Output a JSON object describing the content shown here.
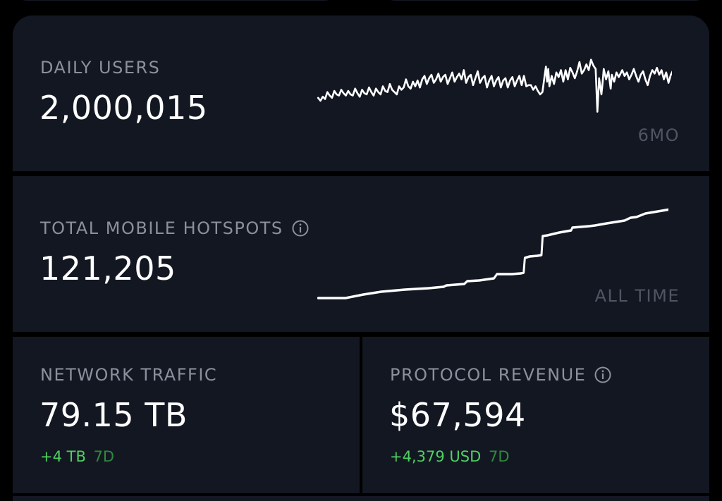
{
  "cards": {
    "daily_users": {
      "label": "DAILY USERS",
      "value": "2,000,015",
      "period": "6MO"
    },
    "mobile_hotspots": {
      "label": "TOTAL MOBILE HOTSPOTS",
      "value": "121,205",
      "period": "ALL TIME",
      "icon": "info-icon"
    },
    "network_traffic": {
      "label": "NETWORK TRAFFIC",
      "value": "79.15 TB",
      "delta": "+4 TB",
      "delta_period": "7D"
    },
    "protocol_revenue": {
      "label": "PROTOCOL REVENUE",
      "value": "$67,594",
      "delta": "+4,379 USD",
      "delta_period": "7D",
      "icon": "info-icon"
    }
  },
  "colors": {
    "card_bg": "#131722",
    "label": "#8b909c",
    "period": "#4f5562",
    "delta_positive": "#4fd161",
    "delta_period": "#2f8a3c"
  }
}
